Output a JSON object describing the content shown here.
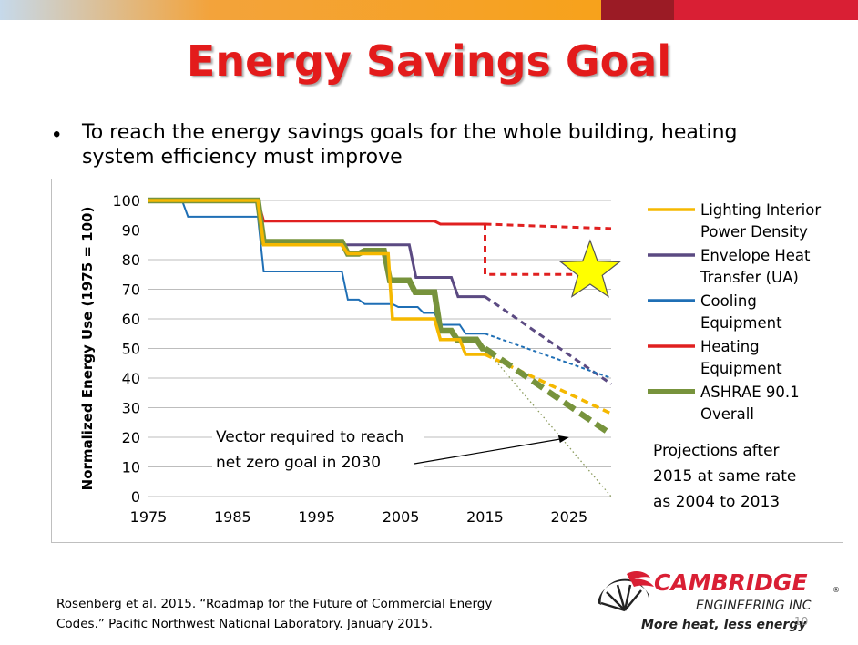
{
  "colors": {
    "title": "#e31b1b",
    "topbar_gradient": [
      "#c6d9ea",
      "#f3a33b",
      "#f7a21b"
    ],
    "topbar_dark_red": "#9b1b25",
    "topbar_red": "#d91f34"
  },
  "slide": {
    "title": "Energy Savings Goal",
    "bullet": "To reach the energy savings goals for the whole building, heating system efficiency must improve",
    "citation_line1": "Rosenberg et al. 2015. “Roadmap for the Future of Commercial Energy",
    "citation_line2": "Codes.” Pacific Northwest National Laboratory. January 2015.",
    "page_number": "10"
  },
  "logo": {
    "name": "CAMBRIDGE",
    "subtitle": "ENGINEERING INC",
    "registered": "®",
    "tagline": "More heat, less energy"
  },
  "chart_data": {
    "type": "line",
    "ylabel": "Normalized Energy Use (1975 = 100)",
    "xlabel": "",
    "xlim": [
      1975,
      2030
    ],
    "ylim": [
      0,
      100
    ],
    "x_ticks": [
      1975,
      1985,
      1995,
      2005,
      2015,
      2025
    ],
    "y_ticks": [
      0,
      10,
      20,
      30,
      40,
      50,
      60,
      70,
      80,
      90,
      100
    ],
    "grid": "horizontal",
    "legend_position": "right",
    "series": [
      {
        "name": "Lighting Interior Power Density",
        "color": "#f5b800",
        "step": true,
        "values": [
          [
            1975,
            100
          ],
          [
            1988,
            100
          ],
          [
            1988.7,
            85
          ],
          [
            1998,
            85
          ],
          [
            1998.7,
            82
          ],
          [
            2003.5,
            82
          ],
          [
            2004,
            60
          ],
          [
            2009,
            60
          ],
          [
            2009.7,
            53
          ],
          [
            2012,
            53
          ],
          [
            2012.7,
            48
          ],
          [
            2015,
            48
          ]
        ],
        "projection": [
          [
            2015,
            48
          ],
          [
            2030,
            28
          ]
        ]
      },
      {
        "name": "Envelope Heat Transfer (UA)",
        "color": "#5b4a82",
        "step": true,
        "values": [
          [
            1975,
            100
          ],
          [
            1988,
            100
          ],
          [
            1988.7,
            85
          ],
          [
            2006,
            85
          ],
          [
            2006.8,
            74
          ],
          [
            2011,
            74
          ],
          [
            2011.8,
            67.5
          ],
          [
            2015,
            67.5
          ]
        ],
        "projection": [
          [
            2015,
            67.5
          ],
          [
            2030,
            38
          ]
        ]
      },
      {
        "name": "Cooling Equipment",
        "color": "#1f6fb5",
        "step": true,
        "values": [
          [
            1975,
            100
          ],
          [
            1979,
            100
          ],
          [
            1979.7,
            94.5
          ],
          [
            1988,
            94.5
          ],
          [
            1988.7,
            76
          ],
          [
            1998,
            76
          ],
          [
            1998.7,
            66.5
          ],
          [
            2000,
            66.5
          ],
          [
            2000.7,
            65
          ],
          [
            2004,
            65
          ],
          [
            2004.7,
            64
          ],
          [
            2007,
            64
          ],
          [
            2007.7,
            62
          ],
          [
            2009,
            62
          ],
          [
            2009.7,
            58
          ],
          [
            2012,
            58
          ],
          [
            2012.7,
            55
          ],
          [
            2015,
            55
          ]
        ],
        "projection": [
          [
            2015,
            55
          ],
          [
            2030,
            40
          ]
        ]
      },
      {
        "name": "Heating Equipment",
        "color": "#e02020",
        "step": true,
        "values": [
          [
            1975,
            100
          ],
          [
            1988,
            100
          ],
          [
            1988.7,
            93
          ],
          [
            2009,
            93
          ],
          [
            2009.7,
            92
          ],
          [
            2015,
            92
          ]
        ],
        "projection": [
          [
            2015,
            92
          ],
          [
            2030,
            90.5
          ]
        ],
        "goal_path": [
          [
            2015,
            92
          ],
          [
            2015,
            75
          ],
          [
            2028,
            75
          ]
        ]
      },
      {
        "name": "ASHRAE 90.1 Overall",
        "color": "#77933c",
        "step": true,
        "values": [
          [
            1975,
            100
          ],
          [
            1988,
            100
          ],
          [
            1988.7,
            86
          ],
          [
            1998,
            86
          ],
          [
            1998.7,
            82
          ],
          [
            2000,
            82
          ],
          [
            2000.7,
            83
          ],
          [
            2003,
            83
          ],
          [
            2003.7,
            73
          ],
          [
            2006,
            73
          ],
          [
            2006.7,
            69
          ],
          [
            2009,
            69
          ],
          [
            2009.7,
            56
          ],
          [
            2011,
            56
          ],
          [
            2011.7,
            53
          ],
          [
            2014,
            53
          ],
          [
            2014.7,
            50
          ],
          [
            2015,
            50
          ]
        ],
        "projection": [
          [
            2015,
            50
          ],
          [
            2030,
            21
          ]
        ]
      }
    ],
    "net_zero_vector": [
      [
        2015,
        50
      ],
      [
        2030,
        0
      ]
    ],
    "goal_marker": {
      "x": 2027.5,
      "y": 76,
      "shape": "star",
      "color": "#ffff00"
    },
    "annotations": {
      "vector": {
        "line1": "Vector required  to reach",
        "line2": "net zero  goal in 2030",
        "arrow_to": [
          2025,
          20
        ]
      },
      "projections": {
        "line1": "Projections after",
        "line2": "2015 at same rate",
        "line3": "as 2004 to 2013"
      }
    }
  }
}
